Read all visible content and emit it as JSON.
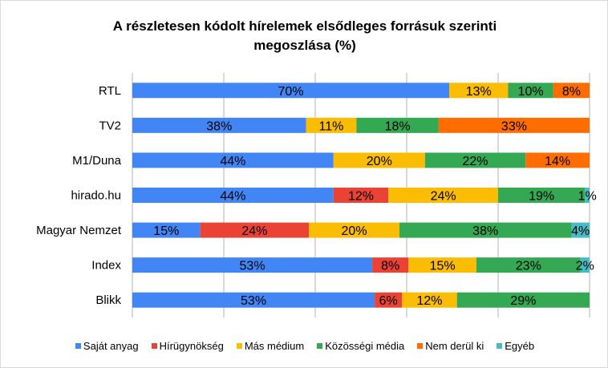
{
  "chart_data": {
    "type": "bar",
    "orientation": "horizontal-stacked-100",
    "title": [
      "A részletesen kódolt hírelemek elsődleges forrásuk szerinti",
      "megoszlása (%)"
    ],
    "categories": [
      "RTL",
      "TV2",
      "M1/Duna",
      "hirado.hu",
      "Magyar Nemzet",
      "Index",
      "Blikk"
    ],
    "series": [
      {
        "name": "Saját anyag",
        "color": "#4285f4",
        "values": [
          70,
          38,
          44,
          44,
          15,
          53,
          53
        ]
      },
      {
        "name": "Hírügynökség",
        "color": "#ea4335",
        "values": [
          0,
          0,
          0,
          12,
          24,
          8,
          6
        ]
      },
      {
        "name": "Más médium",
        "color": "#fbbc04",
        "values": [
          13,
          11,
          20,
          24,
          20,
          15,
          12
        ]
      },
      {
        "name": "Közösségi média",
        "color": "#34a853",
        "values": [
          10,
          18,
          22,
          19,
          38,
          23,
          29
        ]
      },
      {
        "name": "Nem derül ki",
        "color": "#ff6d01",
        "values": [
          8,
          33,
          14,
          0,
          0,
          0,
          0
        ]
      },
      {
        "name": "Egyéb",
        "color": "#46bdc6",
        "values": [
          0,
          0,
          0,
          1,
          4,
          2,
          0
        ]
      }
    ],
    "xlim": [
      0,
      100
    ],
    "grid": true,
    "legend": "bottom"
  }
}
